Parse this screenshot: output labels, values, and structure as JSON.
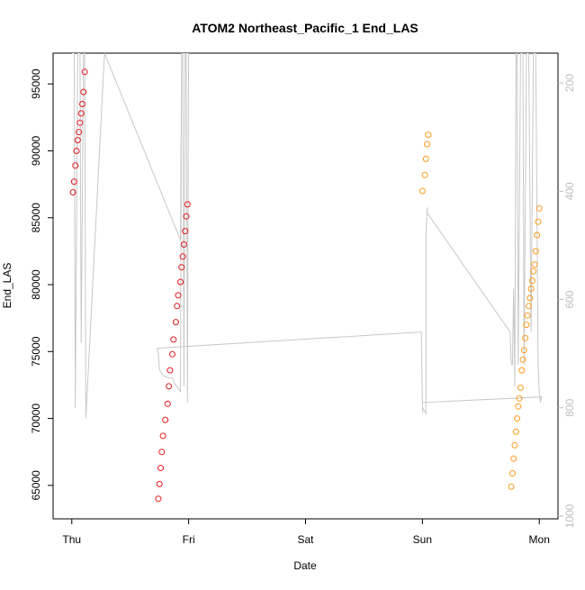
{
  "chart_data": {
    "type": "scatter",
    "title": "ATOM2 Northeast_Pacific_1 End_LAS",
    "xlabel": "Date",
    "ylabel": "End_LAS",
    "x_unit": "days since Thu 00:00",
    "xlim": [
      -0.16,
      4.16
    ],
    "ylim": [
      62500,
      97300
    ],
    "xticks": [
      {
        "value": 0,
        "label": "Thu"
      },
      {
        "value": 1,
        "label": "Fri"
      },
      {
        "value": 2,
        "label": "Sat"
      },
      {
        "value": 3,
        "label": "Sun"
      },
      {
        "value": 4,
        "label": "Mon"
      }
    ],
    "yticks": [
      65000,
      70000,
      75000,
      80000,
      85000,
      90000,
      95000
    ],
    "y2": {
      "label": "",
      "lim": [
        1005,
        145
      ],
      "ticks": [
        200,
        400,
        600,
        800,
        1000
      ],
      "color": "#bdbdbd"
    },
    "grid": false,
    "legend": "none",
    "series": [
      {
        "name": "",
        "color": "#e41a1c",
        "points": [
          [
            0.01,
            86900
          ],
          [
            0.02,
            87700
          ],
          [
            0.03,
            88900
          ],
          [
            0.04,
            90000
          ],
          [
            0.05,
            90800
          ],
          [
            0.06,
            91400
          ],
          [
            0.07,
            92100
          ],
          [
            0.08,
            92800
          ],
          [
            0.09,
            93500
          ],
          [
            0.1,
            94400
          ],
          [
            0.11,
            95900
          ],
          [
            0.74,
            64000
          ],
          [
            0.75,
            65100
          ],
          [
            0.76,
            66300
          ],
          [
            0.77,
            67500
          ],
          [
            0.78,
            68700
          ],
          [
            0.8,
            69900
          ],
          [
            0.82,
            71100
          ],
          [
            0.83,
            72400
          ],
          [
            0.84,
            73600
          ],
          [
            0.86,
            74800
          ],
          [
            0.87,
            75900
          ],
          [
            0.89,
            77200
          ],
          [
            0.9,
            78400
          ],
          [
            0.91,
            79200
          ],
          [
            0.93,
            80200
          ],
          [
            0.94,
            81300
          ],
          [
            0.95,
            82100
          ],
          [
            0.96,
            83000
          ],
          [
            0.97,
            84000
          ],
          [
            0.98,
            85100
          ],
          [
            0.99,
            86000
          ]
        ]
      },
      {
        "name": "",
        "color": "#ff9a1a",
        "points": [
          [
            3.0,
            87000
          ],
          [
            3.02,
            88200
          ],
          [
            3.03,
            89400
          ],
          [
            3.04,
            90500
          ],
          [
            3.05,
            91200
          ],
          [
            3.76,
            64900
          ],
          [
            3.77,
            65900
          ],
          [
            3.78,
            67000
          ],
          [
            3.79,
            68000
          ],
          [
            3.8,
            69000
          ],
          [
            3.81,
            70000
          ],
          [
            3.82,
            70900
          ],
          [
            3.83,
            71500
          ],
          [
            3.84,
            72300
          ],
          [
            3.85,
            73600
          ],
          [
            3.86,
            74400
          ],
          [
            3.87,
            75100
          ],
          [
            3.88,
            76000
          ],
          [
            3.89,
            77000
          ],
          [
            3.9,
            77700
          ],
          [
            3.91,
            78400
          ],
          [
            3.92,
            79000
          ],
          [
            3.93,
            79700
          ],
          [
            3.94,
            80300
          ],
          [
            3.95,
            81000
          ],
          [
            3.96,
            81500
          ],
          [
            3.97,
            82500
          ],
          [
            3.98,
            83700
          ],
          [
            3.99,
            84700
          ],
          [
            4.0,
            85700
          ]
        ]
      }
    ],
    "secondary_line": {
      "color": "#c8c8c8",
      "axis": "y2",
      "points": [
        [
          0.0,
          145
        ],
        [
          0.02,
          145
        ],
        [
          0.03,
          800
        ],
        [
          0.05,
          145
        ],
        [
          0.07,
          145
        ],
        [
          0.08,
          680
        ],
        [
          0.1,
          145
        ],
        [
          0.11,
          145
        ],
        [
          0.12,
          820
        ],
        [
          0.28,
          145
        ],
        [
          0.93,
          490
        ],
        [
          0.94,
          145
        ],
        [
          0.95,
          145
        ],
        [
          0.96,
          760
        ],
        [
          0.97,
          145
        ],
        [
          0.98,
          145
        ],
        [
          0.99,
          790
        ],
        [
          1.0,
          145
        ],
        [
          1.0,
          145
        ],
        [
          0.94,
          145
        ],
        [
          0.93,
          770
        ],
        [
          0.88,
          755
        ],
        [
          0.86,
          745
        ],
        [
          0.83,
          745
        ],
        [
          0.78,
          740
        ],
        [
          0.75,
          730
        ],
        [
          0.74,
          700
        ],
        [
          0.73,
          690
        ],
        [
          2.99,
          660
        ],
        [
          3.0,
          800
        ],
        [
          3.03,
          810
        ],
        [
          3.03,
          480
        ],
        [
          3.04,
          430
        ],
        [
          3.04,
          440
        ],
        [
          3.75,
          660
        ],
        [
          3.76,
          720
        ],
        [
          3.77,
          720
        ],
        [
          3.78,
          580
        ],
        [
          3.79,
          760
        ],
        [
          3.8,
          145
        ],
        [
          3.81,
          145
        ],
        [
          3.82,
          720
        ],
        [
          3.84,
          145
        ],
        [
          3.86,
          145
        ],
        [
          3.87,
          720
        ],
        [
          3.89,
          145
        ],
        [
          3.91,
          145
        ],
        [
          3.93,
          660
        ],
        [
          3.95,
          145
        ],
        [
          3.97,
          145
        ],
        [
          3.99,
          720
        ],
        [
          4.0,
          770
        ],
        [
          4.01,
          790
        ],
        [
          4.02,
          780
        ],
        [
          3.0,
          790
        ],
        [
          3.0,
          810
        ]
      ]
    }
  }
}
